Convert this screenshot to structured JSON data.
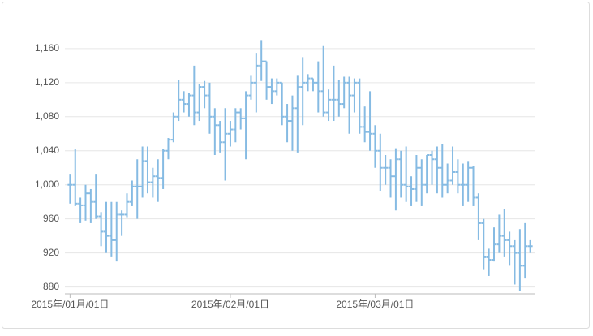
{
  "chart_data": {
    "type": "ohlc",
    "color": "#86bbe3",
    "grid": true,
    "x": [
      "2015-01-01",
      "2015-01-02",
      "2015-01-03",
      "2015-01-04",
      "2015-01-05",
      "2015-01-06",
      "2015-01-07",
      "2015-01-08",
      "2015-01-09",
      "2015-01-10",
      "2015-01-11",
      "2015-01-12",
      "2015-01-13",
      "2015-01-14",
      "2015-01-15",
      "2015-01-16",
      "2015-01-17",
      "2015-01-18",
      "2015-01-19",
      "2015-01-20",
      "2015-01-21",
      "2015-01-22",
      "2015-01-23",
      "2015-01-24",
      "2015-01-25",
      "2015-01-26",
      "2015-01-27",
      "2015-01-28",
      "2015-01-29",
      "2015-01-30",
      "2015-01-31",
      "2015-02-01",
      "2015-02-02",
      "2015-02-03",
      "2015-02-04",
      "2015-02-05",
      "2015-02-06",
      "2015-02-07",
      "2015-02-08",
      "2015-02-09",
      "2015-02-10",
      "2015-02-11",
      "2015-02-12",
      "2015-02-13",
      "2015-02-14",
      "2015-02-15",
      "2015-02-16",
      "2015-02-17",
      "2015-02-18",
      "2015-02-19",
      "2015-02-20",
      "2015-02-21",
      "2015-02-22",
      "2015-02-23",
      "2015-02-24",
      "2015-02-25",
      "2015-02-26",
      "2015-02-27",
      "2015-02-28",
      "2015-03-01",
      "2015-03-02",
      "2015-03-03",
      "2015-03-04",
      "2015-03-05",
      "2015-03-06",
      "2015-03-07",
      "2015-03-08",
      "2015-03-09",
      "2015-03-10",
      "2015-03-11",
      "2015-03-12",
      "2015-03-13",
      "2015-03-14",
      "2015-03-15",
      "2015-03-16",
      "2015-03-17",
      "2015-03-18",
      "2015-03-19",
      "2015-03-20",
      "2015-03-21",
      "2015-03-22",
      "2015-03-23",
      "2015-03-24",
      "2015-03-25",
      "2015-03-26",
      "2015-03-27",
      "2015-03-28",
      "2015-03-29",
      "2015-03-30",
      "2015-03-31"
    ],
    "open": [
      1000,
      1000,
      978,
      976,
      990,
      980,
      963,
      945,
      940,
      935,
      965,
      965,
      980,
      998,
      998,
      1028,
      1003,
      1010,
      1008,
      1040,
      1053,
      1080,
      1100,
      1095,
      1105,
      1085,
      1115,
      1105,
      1080,
      1070,
      1050,
      1060,
      1065,
      1085,
      1078,
      1105,
      1120,
      1140,
      1145,
      1115,
      1110,
      1120,
      1080,
      1075,
      1090,
      1115,
      1120,
      1125,
      1120,
      1110,
      1085,
      1100,
      1100,
      1095,
      1120,
      1105,
      1120,
      1068,
      1062,
      1060,
      1040,
      1020,
      1020,
      1010,
      1030,
      1000,
      998,
      995,
      1020,
      1000,
      1035,
      1030,
      1020,
      1000,
      1005,
      1015,
      1000,
      1000,
      1020,
      985,
      955,
      915,
      912,
      930,
      940,
      935,
      928,
      920,
      905,
      928
    ],
    "high": [
      1012,
      1042,
      985,
      1000,
      995,
      1012,
      968,
      980,
      980,
      980,
      970,
      990,
      1005,
      1030,
      1045,
      1045,
      1020,
      1030,
      1042,
      1055,
      1085,
      1123,
      1110,
      1108,
      1140,
      1118,
      1122,
      1120,
      1090,
      1075,
      1090,
      1075,
      1090,
      1090,
      1110,
      1128,
      1155,
      1170,
      1145,
      1125,
      1125,
      1120,
      1095,
      1105,
      1128,
      1150,
      1130,
      1125,
      1145,
      1163,
      1112,
      1140,
      1123,
      1127,
      1127,
      1125,
      1125,
      1092,
      1110,
      1070,
      1060,
      1035,
      1030,
      1043,
      1040,
      1045,
      1010,
      1035,
      1030,
      1035,
      1040,
      1045,
      1048,
      1025,
      1045,
      1030,
      1025,
      1028,
      1022,
      990,
      960,
      925,
      950,
      965,
      972,
      945,
      935,
      948,
      955,
      935
    ],
    "low": [
      978,
      975,
      955,
      958,
      955,
      960,
      928,
      920,
      915,
      910,
      940,
      962,
      975,
      960,
      985,
      990,
      985,
      980,
      995,
      1030,
      1050,
      1075,
      1085,
      1080,
      1070,
      1075,
      1090,
      1060,
      1035,
      1038,
      1005,
      1045,
      1050,
      1065,
      1030,
      1100,
      1085,
      1122,
      1100,
      1095,
      1105,
      1070,
      1050,
      1040,
      1038,
      1070,
      1110,
      1110,
      1085,
      1080,
      1075,
      1075,
      1080,
      1090,
      1060,
      1085,
      1060,
      1050,
      1040,
      1020,
      993,
      1000,
      985,
      970,
      985,
      980,
      975,
      980,
      975,
      990,
      1000,
      990,
      985,
      990,
      1000,
      990,
      975,
      980,
      975,
      935,
      900,
      893,
      910,
      920,
      915,
      905,
      883,
      875,
      890,
      920
    ],
    "close": [
      1000,
      978,
      976,
      990,
      980,
      963,
      945,
      940,
      935,
      965,
      965,
      980,
      998,
      998,
      1028,
      1003,
      1010,
      1008,
      1040,
      1053,
      1080,
      1100,
      1095,
      1105,
      1085,
      1115,
      1105,
      1080,
      1070,
      1050,
      1060,
      1065,
      1085,
      1078,
      1105,
      1120,
      1140,
      1145,
      1115,
      1110,
      1120,
      1080,
      1075,
      1090,
      1115,
      1120,
      1125,
      1120,
      1110,
      1085,
      1100,
      1100,
      1095,
      1120,
      1105,
      1120,
      1068,
      1062,
      1060,
      1040,
      1020,
      1020,
      1010,
      1030,
      1000,
      998,
      995,
      1020,
      1000,
      1035,
      1030,
      1020,
      1000,
      1005,
      1015,
      1000,
      1000,
      1020,
      985,
      955,
      915,
      912,
      930,
      940,
      935,
      928,
      920,
      905,
      928,
      928
    ],
    "xlim": [
      "2014-12-31",
      "2015-04-01"
    ],
    "xticks": [
      {
        "value": "2015-01-01",
        "label": "2015年/01月/01日"
      },
      {
        "value": "2015-02-01",
        "label": "2015年/02月/01日"
      },
      {
        "value": "2015-03-01",
        "label": "2015年/03月/01日"
      }
    ],
    "ylim": [
      872,
      1198
    ],
    "yticks": [
      {
        "value": 880,
        "label": "880"
      },
      {
        "value": 920,
        "label": "920"
      },
      {
        "value": 960,
        "label": "960"
      },
      {
        "value": 1000,
        "label": "1,000"
      },
      {
        "value": 1040,
        "label": "1,040"
      },
      {
        "value": 1080,
        "label": "1,080"
      },
      {
        "value": 1120,
        "label": "1,120"
      },
      {
        "value": 1160,
        "label": "1,160"
      }
    ]
  }
}
